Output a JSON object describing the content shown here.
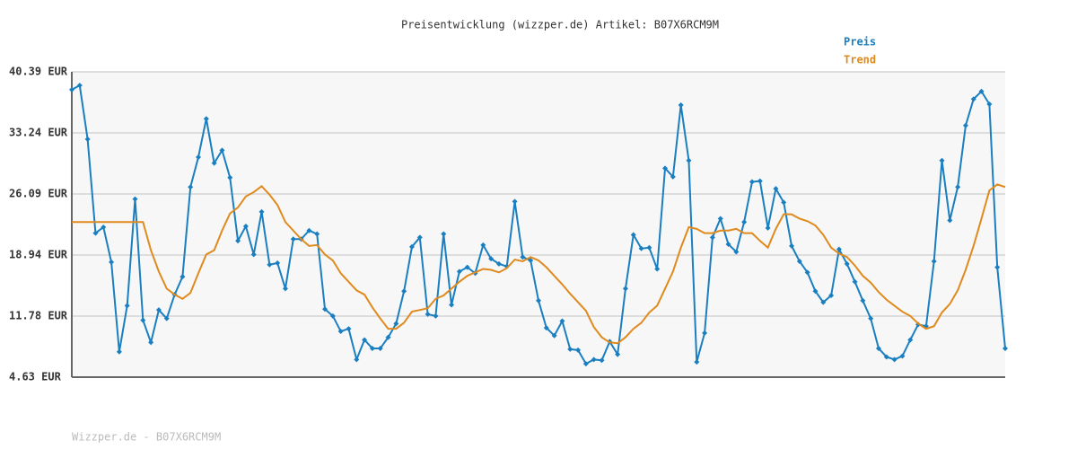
{
  "chart_data": {
    "type": "line",
    "title": "Preisentwicklung (wizzper.de) Artikel: B07X6RCM9M",
    "footer": "Wizzper.de - B07X6RCM9M",
    "ylim": [
      4.63,
      40.39
    ],
    "yticks": [
      {
        "value": 4.63,
        "label": "4.63 EUR"
      },
      {
        "value": 11.78,
        "label": "11.78 EUR"
      },
      {
        "value": 18.94,
        "label": "18.94 EUR"
      },
      {
        "value": 26.09,
        "label": "26.09 EUR"
      },
      {
        "value": 33.24,
        "label": "33.24 EUR"
      },
      {
        "value": 40.39,
        "label": "40.39 EUR"
      }
    ],
    "grid": true,
    "legend": "top-right",
    "series": [
      {
        "name": "Preis",
        "color": "#1a7fc0",
        "markers": true,
        "values": [
          38.3,
          38.8,
          32.5,
          21.5,
          22.2,
          18.1,
          7.6,
          13.0,
          25.5,
          11.3,
          8.7,
          12.5,
          11.5,
          14.3,
          16.4,
          26.9,
          30.4,
          34.9,
          29.7,
          31.2,
          28.0,
          20.6,
          22.3,
          19.0,
          24.0,
          17.8,
          18.0,
          15.0,
          20.8,
          20.8,
          21.8,
          21.4,
          12.6,
          11.8,
          10.0,
          10.3,
          6.7,
          9.0,
          8.0,
          8.0,
          9.3,
          10.9,
          14.7,
          19.9,
          21.0,
          12.0,
          11.8,
          21.4,
          13.1,
          17.0,
          17.5,
          16.8,
          20.1,
          18.5,
          17.9,
          17.6,
          25.2,
          18.7,
          18.3,
          13.6,
          10.4,
          9.5,
          11.2,
          7.9,
          7.8,
          6.2,
          6.7,
          6.6,
          8.8,
          7.3,
          15.0,
          21.3,
          19.7,
          19.8,
          17.3,
          29.1,
          28.1,
          36.5,
          30.0,
          6.4,
          9.8,
          21.0,
          23.2,
          20.2,
          19.3,
          22.8,
          27.5,
          27.6,
          22.1,
          26.7,
          25.1,
          20.0,
          18.2,
          16.9,
          14.7,
          13.4,
          14.2,
          19.6,
          17.9,
          15.8,
          13.6,
          11.5,
          8.0,
          7.0,
          6.7,
          7.1,
          9.0,
          10.8,
          10.6,
          18.2,
          30.0,
          23.0,
          26.9,
          34.1,
          37.2,
          38.1,
          36.6,
          17.5,
          8.0
        ]
      },
      {
        "name": "Trend",
        "color": "#e08a1e",
        "markers": false,
        "values": [
          22.8,
          22.8,
          22.8,
          22.8,
          22.8,
          22.8,
          22.8,
          22.8,
          22.8,
          22.8,
          19.5,
          17.0,
          15.0,
          14.3,
          13.8,
          14.5,
          16.8,
          19.0,
          19.5,
          21.8,
          23.8,
          24.5,
          25.8,
          26.3,
          27.0,
          26.0,
          24.8,
          22.8,
          21.8,
          20.8,
          20.0,
          20.1,
          19.0,
          18.3,
          16.8,
          15.8,
          14.8,
          14.3,
          12.8,
          11.5,
          10.3,
          10.3,
          11.0,
          12.3,
          12.5,
          12.7,
          13.8,
          14.2,
          15.0,
          15.8,
          16.5,
          16.9,
          17.3,
          17.2,
          16.9,
          17.4,
          18.4,
          18.2,
          18.7,
          18.3,
          17.5,
          16.5,
          15.5,
          14.4,
          13.4,
          12.4,
          10.5,
          9.3,
          8.7,
          8.6,
          9.3,
          10.3,
          11.0,
          12.2,
          13.0,
          15.0,
          17.0,
          19.8,
          22.2,
          22.0,
          21.5,
          21.5,
          21.8,
          21.8,
          22.0,
          21.5,
          21.5,
          20.6,
          19.8,
          22.0,
          23.7,
          23.7,
          23.2,
          22.9,
          22.4,
          21.3,
          19.8,
          19.1,
          18.7,
          17.7,
          16.5,
          15.7,
          14.6,
          13.7,
          13.0,
          12.3,
          11.8,
          10.9,
          10.3,
          10.6,
          12.2,
          13.2,
          14.8,
          17.2,
          20.0,
          23.2,
          26.5,
          27.2,
          26.9
        ]
      }
    ]
  }
}
